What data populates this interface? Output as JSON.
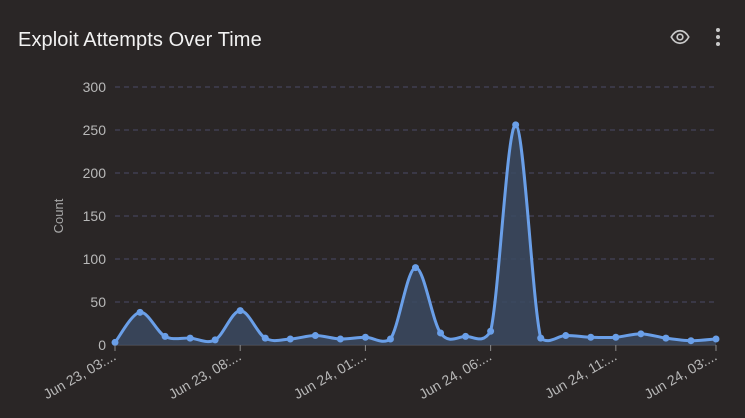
{
  "header": {
    "title": "Exploit Attempts Over Time",
    "actions": [
      {
        "icon": "eye-icon",
        "label": ""
      },
      {
        "icon": "more-vertical-icon",
        "label": ""
      }
    ]
  },
  "colors": {
    "background": "#2a2626",
    "line": "#6a9fe8",
    "fill": "#3b4a62",
    "grid": "#4a4a66",
    "text": "#b8b8b8"
  },
  "chart_data": {
    "type": "area",
    "title": "Exploit Attempts Over Time",
    "xlabel": "",
    "ylabel": "Count",
    "ylim": [
      0,
      300
    ],
    "yticks": [
      0,
      50,
      100,
      150,
      200,
      250,
      300
    ],
    "grid": "horizontal-dashed",
    "legend": "none",
    "x_tick_labels": [
      "Jun 23, 03:...",
      "Jun 23, 08:...",
      "Jun 24, 01:...",
      "Jun 24, 06:...",
      "Jun 24, 11:...",
      "Jun 24, 03:..."
    ],
    "x_tick_indices": [
      0,
      5,
      10,
      15,
      20,
      24
    ],
    "series": [
      {
        "values": [
          3,
          38,
          10,
          8,
          6,
          40,
          8,
          7,
          11,
          7,
          9,
          7,
          90,
          14,
          10,
          16,
          256,
          8,
          11,
          9,
          9,
          13,
          8,
          5,
          7
        ]
      }
    ]
  }
}
